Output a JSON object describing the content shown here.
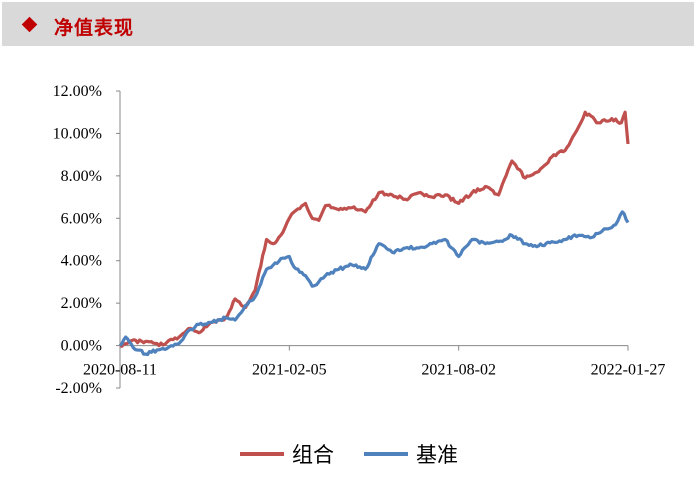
{
  "header": {
    "title": "净值表现"
  },
  "colors": {
    "portfolio": "#c0504d",
    "benchmark": "#4f81bd",
    "header_bg": "#d9d9d9",
    "accent": "#c00000"
  },
  "chart_data": {
    "type": "line",
    "title": "",
    "xlabel": "",
    "ylabel": "",
    "ylim": [
      -0.02,
      0.12
    ],
    "yticks": [
      "12.00%",
      "10.00%",
      "8.00%",
      "6.00%",
      "4.00%",
      "2.00%",
      "0.00%",
      "-2.00%"
    ],
    "ytick_values": [
      0.12,
      0.1,
      0.08,
      0.06,
      0.04,
      0.02,
      0.0,
      -0.02
    ],
    "xticks": [
      "2020-08-11",
      "2021-02-05",
      "2021-08-02",
      "2022-01-27"
    ],
    "xlim": [
      "2020-08-11",
      "2022-01-27"
    ],
    "grid": false,
    "legend": "bottom",
    "series": [
      {
        "name": "组合",
        "color": "#c0504d",
        "x": [
          "2020-08-11",
          "2020-08-21",
          "2020-09-07",
          "2020-09-21",
          "2020-10-12",
          "2020-10-22",
          "2020-11-02",
          "2020-11-16",
          "2020-11-30",
          "2020-12-10",
          "2020-12-21",
          "2020-12-31",
          "2021-01-12",
          "2021-01-19",
          "2021-01-27",
          "2021-02-05",
          "2021-02-10",
          "2021-02-22",
          "2021-03-01",
          "2021-03-08",
          "2021-03-15",
          "2021-03-29",
          "2021-04-12",
          "2021-04-26",
          "2021-05-10",
          "2021-05-24",
          "2021-06-07",
          "2021-06-21",
          "2021-07-05",
          "2021-07-19",
          "2021-08-02",
          "2021-08-16",
          "2021-08-30",
          "2021-09-13",
          "2021-09-27",
          "2021-10-11",
          "2021-10-25",
          "2021-11-08",
          "2021-11-22",
          "2021-12-06",
          "2021-12-13",
          "2021-12-27",
          "2022-01-10",
          "2022-01-20",
          "2022-01-24",
          "2022-01-27"
        ],
        "y": [
          0.0,
          0.002,
          0.002,
          0.0,
          0.004,
          0.008,
          0.006,
          0.011,
          0.013,
          0.022,
          0.018,
          0.026,
          0.05,
          0.048,
          0.052,
          0.06,
          0.063,
          0.067,
          0.06,
          0.059,
          0.066,
          0.064,
          0.065,
          0.063,
          0.072,
          0.071,
          0.069,
          0.072,
          0.07,
          0.071,
          0.067,
          0.072,
          0.075,
          0.071,
          0.087,
          0.079,
          0.082,
          0.089,
          0.092,
          0.103,
          0.11,
          0.105,
          0.107,
          0.105,
          0.11,
          0.095
        ]
      },
      {
        "name": "基准",
        "color": "#4f81bd",
        "x": [
          "2020-08-11",
          "2020-08-17",
          "2020-08-25",
          "2020-09-07",
          "2020-09-21",
          "2020-10-12",
          "2020-10-22",
          "2020-11-02",
          "2020-11-16",
          "2020-11-30",
          "2020-12-10",
          "2020-12-21",
          "2020-12-31",
          "2021-01-12",
          "2021-01-19",
          "2021-01-27",
          "2021-02-05",
          "2021-02-10",
          "2021-02-22",
          "2021-03-01",
          "2021-03-08",
          "2021-03-15",
          "2021-03-29",
          "2021-04-12",
          "2021-04-26",
          "2021-05-10",
          "2021-05-24",
          "2021-06-07",
          "2021-06-21",
          "2021-07-05",
          "2021-07-19",
          "2021-08-02",
          "2021-08-16",
          "2021-08-30",
          "2021-09-13",
          "2021-09-27",
          "2021-10-11",
          "2021-10-25",
          "2021-11-08",
          "2021-11-22",
          "2021-12-06",
          "2021-12-20",
          "2022-01-04",
          "2022-01-14",
          "2022-01-21",
          "2022-01-27"
        ],
        "y": [
          0.0,
          0.004,
          -0.001,
          -0.004,
          -0.002,
          0.001,
          0.007,
          0.01,
          0.011,
          0.013,
          0.012,
          0.019,
          0.023,
          0.036,
          0.038,
          0.041,
          0.042,
          0.037,
          0.033,
          0.028,
          0.03,
          0.033,
          0.036,
          0.038,
          0.036,
          0.048,
          0.044,
          0.046,
          0.046,
          0.048,
          0.05,
          0.042,
          0.05,
          0.048,
          0.049,
          0.052,
          0.048,
          0.047,
          0.049,
          0.05,
          0.052,
          0.051,
          0.055,
          0.057,
          0.063,
          0.058
        ]
      }
    ]
  }
}
